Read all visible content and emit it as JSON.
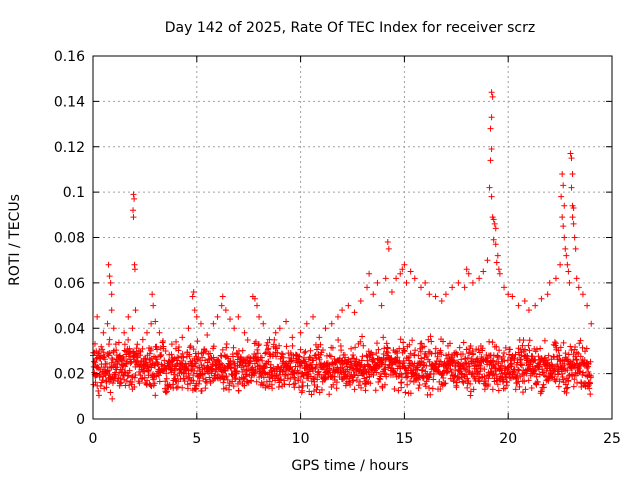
{
  "chart_data": {
    "type": "scatter",
    "title": "Day 142 of 2025, Rate Of TEC Index for receiver scrz",
    "xlabel": "GPS time / hours",
    "ylabel": "ROTI / TECUs",
    "xlim": [
      0,
      25
    ],
    "ylim": [
      0,
      0.16
    ],
    "xticks": [
      0,
      5,
      10,
      15,
      20,
      25
    ],
    "xtick_labels": [
      "0",
      "5",
      "10",
      "15",
      "20",
      "25"
    ],
    "yticks": [
      0,
      0.02,
      0.04,
      0.06,
      0.08,
      0.1,
      0.12,
      0.14,
      0.16
    ],
    "ytick_labels": [
      "0",
      "0.02",
      "0.04",
      "0.06",
      "0.08",
      "0.1",
      "0.12",
      "0.14",
      "0.16"
    ],
    "grid": true,
    "marker": "+",
    "color": "#ff0000",
    "series": [
      {
        "name": "ROTI",
        "points": [
          [
            0.1,
            0.025
          ],
          [
            0.2,
            0.045
          ],
          [
            0.3,
            0.03
          ],
          [
            0.5,
            0.038
          ],
          [
            0.7,
            0.042
          ],
          [
            0.8,
            0.035
          ],
          [
            0.9,
            0.048
          ],
          [
            1.0,
            0.04
          ],
          [
            1.1,
            0.033
          ],
          [
            1.3,
            0.028
          ],
          [
            0.75,
            0.068
          ],
          [
            0.8,
            0.063
          ],
          [
            0.85,
            0.06
          ],
          [
            0.9,
            0.055
          ],
          [
            1.5,
            0.038
          ],
          [
            1.7,
            0.045
          ],
          [
            1.9,
            0.04
          ],
          [
            1.95,
            0.099
          ],
          [
            1.98,
            0.097
          ],
          [
            1.93,
            0.092
          ],
          [
            1.95,
            0.089
          ],
          [
            2.0,
            0.068
          ],
          [
            2.02,
            0.066
          ],
          [
            2.05,
            0.048
          ],
          [
            2.4,
            0.035
          ],
          [
            2.6,
            0.038
          ],
          [
            2.8,
            0.042
          ],
          [
            2.85,
            0.055
          ],
          [
            2.9,
            0.05
          ],
          [
            3.0,
            0.043
          ],
          [
            3.2,
            0.038
          ],
          [
            3.5,
            0.03
          ],
          [
            3.8,
            0.033
          ],
          [
            4.0,
            0.034
          ],
          [
            4.3,
            0.036
          ],
          [
            4.6,
            0.04
          ],
          [
            4.8,
            0.054
          ],
          [
            4.85,
            0.056
          ],
          [
            4.9,
            0.048
          ],
          [
            5.0,
            0.045
          ],
          [
            5.2,
            0.042
          ],
          [
            5.5,
            0.037
          ],
          [
            5.8,
            0.042
          ],
          [
            6.0,
            0.045
          ],
          [
            6.2,
            0.05
          ],
          [
            6.25,
            0.054
          ],
          [
            6.4,
            0.048
          ],
          [
            6.6,
            0.044
          ],
          [
            6.8,
            0.04
          ],
          [
            7.0,
            0.045
          ],
          [
            7.3,
            0.038
          ],
          [
            7.7,
            0.054
          ],
          [
            7.8,
            0.053
          ],
          [
            7.9,
            0.05
          ],
          [
            8.0,
            0.045
          ],
          [
            8.2,
            0.042
          ],
          [
            8.5,
            0.035
          ],
          [
            8.8,
            0.038
          ],
          [
            9.0,
            0.04
          ],
          [
            9.3,
            0.043
          ],
          [
            9.6,
            0.036
          ],
          [
            10.0,
            0.038
          ],
          [
            10.3,
            0.042
          ],
          [
            10.6,
            0.045
          ],
          [
            10.9,
            0.036
          ],
          [
            11.2,
            0.04
          ],
          [
            11.5,
            0.042
          ],
          [
            11.8,
            0.045
          ],
          [
            12.0,
            0.048
          ],
          [
            12.3,
            0.05
          ],
          [
            12.6,
            0.047
          ],
          [
            12.9,
            0.052
          ],
          [
            13.2,
            0.058
          ],
          [
            13.3,
            0.064
          ],
          [
            13.5,
            0.055
          ],
          [
            13.7,
            0.06
          ],
          [
            13.9,
            0.05
          ],
          [
            14.1,
            0.062
          ],
          [
            14.2,
            0.078
          ],
          [
            14.25,
            0.075
          ],
          [
            14.4,
            0.056
          ],
          [
            14.6,
            0.062
          ],
          [
            14.8,
            0.064
          ],
          [
            14.9,
            0.066
          ],
          [
            15.0,
            0.068
          ],
          [
            15.1,
            0.06
          ],
          [
            15.3,
            0.065
          ],
          [
            15.5,
            0.062
          ],
          [
            15.8,
            0.058
          ],
          [
            16.0,
            0.06
          ],
          [
            16.2,
            0.055
          ],
          [
            16.5,
            0.054
          ],
          [
            16.8,
            0.052
          ],
          [
            17.0,
            0.055
          ],
          [
            17.3,
            0.058
          ],
          [
            17.6,
            0.06
          ],
          [
            17.9,
            0.058
          ],
          [
            18.0,
            0.066
          ],
          [
            18.1,
            0.064
          ],
          [
            18.3,
            0.06
          ],
          [
            18.6,
            0.062
          ],
          [
            18.8,
            0.065
          ],
          [
            19.0,
            0.07
          ],
          [
            19.2,
            0.144
          ],
          [
            19.25,
            0.142
          ],
          [
            19.2,
            0.133
          ],
          [
            19.15,
            0.128
          ],
          [
            19.2,
            0.119
          ],
          [
            19.15,
            0.114
          ],
          [
            19.1,
            0.102
          ],
          [
            19.2,
            0.098
          ],
          [
            19.25,
            0.089
          ],
          [
            19.3,
            0.088
          ],
          [
            19.35,
            0.086
          ],
          [
            19.4,
            0.084
          ],
          [
            19.3,
            0.079
          ],
          [
            19.4,
            0.077
          ],
          [
            19.5,
            0.072
          ],
          [
            19.45,
            0.069
          ],
          [
            19.55,
            0.066
          ],
          [
            19.6,
            0.064
          ],
          [
            19.8,
            0.058
          ],
          [
            20.0,
            0.055
          ],
          [
            20.2,
            0.054
          ],
          [
            20.5,
            0.05
          ],
          [
            20.8,
            0.052
          ],
          [
            21.0,
            0.048
          ],
          [
            21.3,
            0.05
          ],
          [
            21.6,
            0.053
          ],
          [
            21.9,
            0.055
          ],
          [
            22.0,
            0.06
          ],
          [
            22.3,
            0.062
          ],
          [
            22.5,
            0.068
          ],
          [
            22.6,
            0.108
          ],
          [
            22.65,
            0.103
          ],
          [
            22.55,
            0.098
          ],
          [
            22.7,
            0.094
          ],
          [
            22.6,
            0.089
          ],
          [
            22.65,
            0.085
          ],
          [
            22.7,
            0.08
          ],
          [
            22.75,
            0.075
          ],
          [
            22.8,
            0.072
          ],
          [
            22.85,
            0.068
          ],
          [
            22.9,
            0.065
          ],
          [
            22.95,
            0.06
          ],
          [
            23.0,
            0.117
          ],
          [
            23.05,
            0.115
          ],
          [
            23.1,
            0.108
          ],
          [
            23.05,
            0.102
          ],
          [
            23.1,
            0.094
          ],
          [
            23.15,
            0.093
          ],
          [
            23.1,
            0.089
          ],
          [
            23.15,
            0.086
          ],
          [
            23.2,
            0.08
          ],
          [
            23.25,
            0.075
          ],
          [
            23.3,
            0.062
          ],
          [
            23.4,
            0.058
          ],
          [
            23.6,
            0.055
          ],
          [
            23.8,
            0.05
          ],
          [
            24.0,
            0.042
          ]
        ],
        "dense_band": {
          "x": [
            0,
            24
          ],
          "y_center": 0.02,
          "y_low": 0.008,
          "y_high": 0.035,
          "description": "continuous measurements every ~30 s"
        }
      }
    ]
  }
}
